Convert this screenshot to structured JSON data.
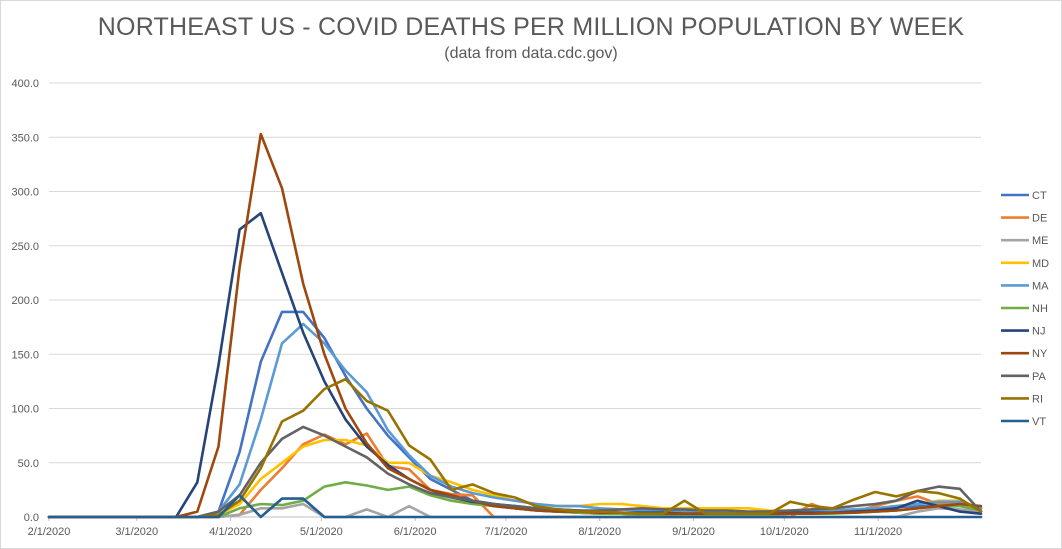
{
  "chart_data": {
    "type": "line",
    "title": "NORTHEAST US - COVID DEATHS PER MILLION POPULATION BY WEEK",
    "subtitle": "(data from data.cdc.gov)",
    "xlabel": "",
    "ylabel": "",
    "ylim": [
      0,
      400
    ],
    "yticks": [
      "0.0",
      "50.0",
      "100.0",
      "150.0",
      "200.0",
      "250.0",
      "300.0",
      "350.0",
      "400.0"
    ],
    "xlim": [
      "2020-02-01",
      "2020-12-05"
    ],
    "xticks": [
      {
        "date": "2020-02-01",
        "label": "2/1/2020"
      },
      {
        "date": "2020-03-01",
        "label": "3/1/2020"
      },
      {
        "date": "2020-04-01",
        "label": "4/1/2020"
      },
      {
        "date": "2020-05-01",
        "label": "5/1/2020"
      },
      {
        "date": "2020-06-01",
        "label": "6/1/2020"
      },
      {
        "date": "2020-07-01",
        "label": "7/1/2020"
      },
      {
        "date": "2020-08-01",
        "label": "8/1/2020"
      },
      {
        "date": "2020-09-01",
        "label": "9/1/2020"
      },
      {
        "date": "2020-10-01",
        "label": "10/1/2020"
      },
      {
        "date": "2020-11-01",
        "label": "11/1/2020"
      }
    ],
    "grid": true,
    "legend_position": "right",
    "x": [
      "2020-02-01",
      "2020-02-08",
      "2020-02-15",
      "2020-02-22",
      "2020-02-29",
      "2020-03-07",
      "2020-03-14",
      "2020-03-21",
      "2020-03-28",
      "2020-04-04",
      "2020-04-11",
      "2020-04-18",
      "2020-04-25",
      "2020-05-02",
      "2020-05-09",
      "2020-05-16",
      "2020-05-23",
      "2020-05-30",
      "2020-06-06",
      "2020-06-13",
      "2020-06-20",
      "2020-06-27",
      "2020-07-04",
      "2020-07-11",
      "2020-07-18",
      "2020-07-25",
      "2020-08-01",
      "2020-08-08",
      "2020-08-15",
      "2020-08-22",
      "2020-08-29",
      "2020-09-05",
      "2020-09-12",
      "2020-09-19",
      "2020-09-26",
      "2020-10-03",
      "2020-10-10",
      "2020-10-17",
      "2020-10-24",
      "2020-10-31",
      "2020-11-07",
      "2020-11-14",
      "2020-11-21",
      "2020-11-28",
      "2020-12-05"
    ],
    "series": [
      {
        "name": "CT",
        "color": "#4472c4",
        "values": [
          0,
          0,
          0,
          0,
          0,
          0,
          0,
          0,
          5,
          60,
          143,
          189,
          189,
          165,
          130,
          100,
          75,
          55,
          35,
          25,
          15,
          12,
          8,
          6,
          5,
          4,
          3,
          3,
          2,
          3,
          2,
          2,
          3,
          2,
          2,
          3,
          3,
          5,
          6,
          7,
          9,
          10,
          10,
          10,
          8
        ]
      },
      {
        "name": "DE",
        "color": "#ed7d31",
        "values": [
          0,
          0,
          0,
          0,
          0,
          0,
          0,
          0,
          0,
          2,
          25,
          45,
          67,
          76,
          67,
          77,
          47,
          44,
          25,
          21,
          20,
          0,
          0,
          0,
          0,
          0,
          0,
          0,
          0,
          0,
          0,
          0,
          0,
          0,
          0,
          0,
          12,
          5,
          5,
          10,
          15,
          19,
          12,
          12,
          5
        ]
      },
      {
        "name": "ME",
        "color": "#a5a5a5",
        "values": [
          0,
          0,
          0,
          0,
          0,
          0,
          0,
          0,
          0,
          2,
          8,
          8,
          12,
          0,
          0,
          7,
          0,
          10,
          0,
          0,
          0,
          0,
          0,
          0,
          0,
          0,
          0,
          0,
          0,
          0,
          0,
          0,
          0,
          0,
          0,
          0,
          0,
          0,
          0,
          0,
          0,
          5,
          8,
          7,
          5
        ]
      },
      {
        "name": "MD",
        "color": "#ffc000",
        "values": [
          0,
          0,
          0,
          0,
          0,
          0,
          0,
          0,
          2,
          12,
          35,
          50,
          65,
          71,
          71,
          66,
          50,
          50,
          38,
          32,
          25,
          20,
          15,
          12,
          10,
          10,
          12,
          12,
          10,
          8,
          8,
          8,
          8,
          8,
          6,
          6,
          7,
          6,
          7,
          8,
          10,
          12,
          15,
          15,
          8
        ]
      },
      {
        "name": "MA",
        "color": "#5b9bd5",
        "values": [
          0,
          0,
          0,
          0,
          0,
          0,
          0,
          0,
          5,
          30,
          90,
          160,
          178,
          160,
          135,
          115,
          80,
          57,
          38,
          28,
          22,
          18,
          15,
          12,
          10,
          10,
          8,
          7,
          6,
          6,
          5,
          5,
          4,
          4,
          4,
          5,
          5,
          6,
          7,
          8,
          10,
          12,
          14,
          14,
          8
        ]
      },
      {
        "name": "NH",
        "color": "#70ad47",
        "values": [
          0,
          0,
          0,
          0,
          0,
          0,
          0,
          0,
          0,
          8,
          12,
          11,
          15,
          28,
          32,
          29,
          25,
          28,
          20,
          15,
          12,
          10,
          8,
          6,
          5,
          4,
          3,
          3,
          2,
          2,
          2,
          2,
          2,
          2,
          2,
          3,
          3,
          3,
          4,
          5,
          6,
          8,
          10,
          10,
          6
        ]
      },
      {
        "name": "NJ",
        "color": "#264478",
        "values": [
          0,
          0,
          0,
          0,
          0,
          0,
          0,
          32,
          140,
          265,
          280,
          225,
          170,
          125,
          90,
          65,
          48,
          35,
          25,
          18,
          14,
          12,
          10,
          8,
          7,
          6,
          5,
          4,
          4,
          4,
          3,
          3,
          3,
          3,
          3,
          4,
          4,
          4,
          5,
          6,
          8,
          15,
          10,
          5,
          3
        ]
      },
      {
        "name": "NY",
        "color": "#9e480e",
        "values": [
          0,
          0,
          0,
          0,
          0,
          0,
          0,
          5,
          65,
          230,
          353,
          303,
          215,
          150,
          100,
          68,
          45,
          35,
          25,
          20,
          15,
          10,
          8,
          6,
          5,
          5,
          4,
          4,
          3,
          3,
          3,
          3,
          3,
          3,
          3,
          3,
          3,
          4,
          4,
          5,
          6,
          8,
          10,
          12,
          10
        ]
      },
      {
        "name": "PA",
        "color": "#636363",
        "values": [
          0,
          0,
          0,
          0,
          0,
          0,
          0,
          0,
          5,
          20,
          50,
          72,
          83,
          75,
          65,
          55,
          40,
          30,
          22,
          18,
          15,
          12,
          10,
          8,
          7,
          6,
          6,
          7,
          8,
          7,
          7,
          6,
          6,
          5,
          5,
          6,
          7,
          8,
          10,
          12,
          15,
          24,
          28,
          26,
          5
        ]
      },
      {
        "name": "RI",
        "color": "#997300",
        "values": [
          0,
          0,
          0,
          0,
          0,
          0,
          0,
          0,
          2,
          15,
          45,
          88,
          98,
          118,
          127,
          107,
          98,
          66,
          53,
          25,
          30,
          22,
          18,
          10,
          7,
          5,
          5,
          4,
          3,
          3,
          15,
          3,
          3,
          3,
          3,
          14,
          10,
          8,
          16,
          23,
          19,
          24,
          22,
          17,
          5
        ]
      },
      {
        "name": "VT",
        "color": "#255e91",
        "values": [
          0,
          0,
          0,
          0,
          0,
          0,
          0,
          0,
          0,
          20,
          0,
          17,
          17,
          0,
          0,
          0,
          0,
          0,
          0,
          0,
          0,
          0,
          0,
          0,
          0,
          0,
          0,
          0,
          0,
          0,
          0,
          0,
          0,
          0,
          0,
          0,
          0,
          0,
          0,
          0,
          0,
          0,
          0,
          0,
          0
        ]
      }
    ]
  }
}
